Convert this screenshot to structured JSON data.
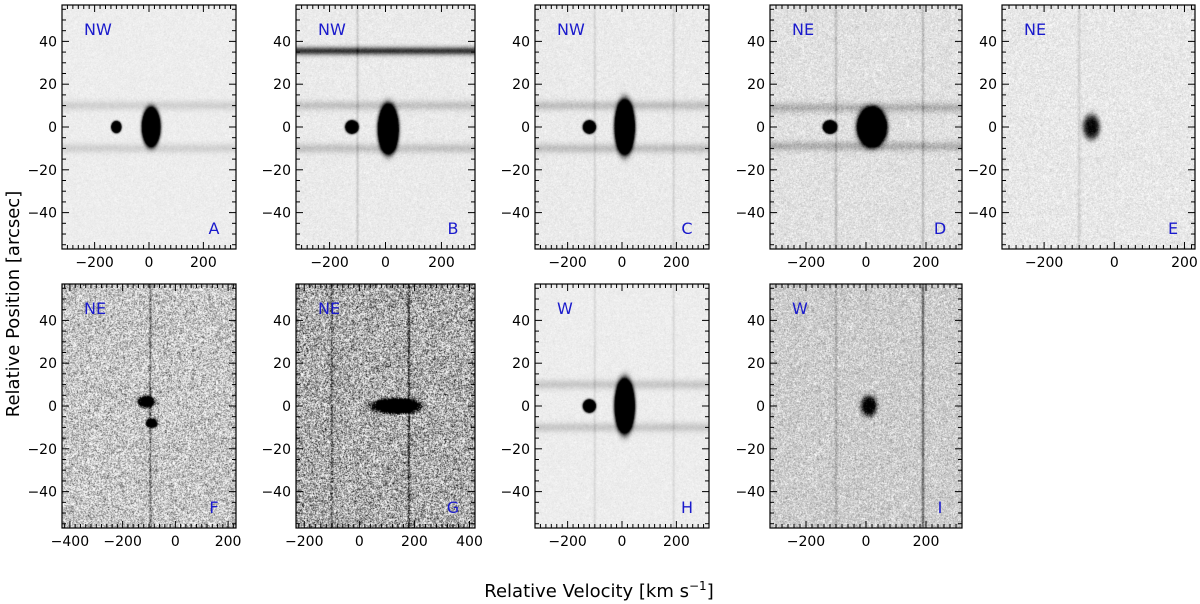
{
  "figure": {
    "xlabel": "Relative Velocity [km s",
    "xlabel_sup": "−1",
    "xlabel_end": "]",
    "ylabel": "Relative Position [arcsec]"
  },
  "chart_data": [
    {
      "type": "heatmap",
      "panel": "A",
      "direction": "NW",
      "xlim": [
        -320,
        320
      ],
      "ylim": [
        -57,
        57
      ],
      "xticks": [
        -200,
        0,
        200
      ],
      "yticks": [
        -40,
        -20,
        0,
        20,
        40
      ],
      "noise": 0.06,
      "bg": 0.07,
      "bands": [
        {
          "y": 10,
          "s": 0.9
        },
        {
          "y": -10,
          "s": 0.9
        }
      ],
      "streaks": [],
      "blobs": [
        {
          "x": 8,
          "y": 0,
          "w": 55,
          "h": 15,
          "s": 4
        },
        {
          "x": -120,
          "y": 0,
          "w": 30,
          "h": 4.5,
          "s": 4
        }
      ]
    },
    {
      "type": "heatmap",
      "panel": "B",
      "direction": "NW",
      "xlim": [
        -320,
        320
      ],
      "ylim": [
        -57,
        57
      ],
      "xticks": [
        -200,
        0,
        200
      ],
      "yticks": [
        -40,
        -20,
        0,
        20,
        40
      ],
      "noise": 0.08,
      "bg": 0.08,
      "bands": [
        {
          "y": 35.5,
          "s": 6,
          "hw": 1.3
        },
        {
          "y": 10,
          "s": 1.3
        },
        {
          "y": -10,
          "s": 1.3
        }
      ],
      "streaks": [
        {
          "x": -100,
          "s": 1.1
        }
      ],
      "blobs": [
        {
          "x": 10,
          "y": -1,
          "w": 60,
          "h": 19,
          "s": 4
        },
        {
          "x": -120,
          "y": 0,
          "w": 38,
          "h": 5,
          "s": 4
        }
      ]
    },
    {
      "type": "heatmap",
      "panel": "C",
      "direction": "NW",
      "xlim": [
        -320,
        320
      ],
      "ylim": [
        -57,
        57
      ],
      "xticks": [
        -200,
        0,
        200
      ],
      "yticks": [
        -40,
        -20,
        0,
        20,
        40
      ],
      "noise": 0.08,
      "bg": 0.08,
      "bands": [
        {
          "y": 10,
          "s": 1.4
        },
        {
          "y": -10,
          "s": 1.4
        }
      ],
      "streaks": [
        {
          "x": -100,
          "s": 0.8
        },
        {
          "x": 190,
          "s": 0.8
        }
      ],
      "blobs": [
        {
          "x": 10,
          "y": 0,
          "w": 60,
          "h": 21,
          "s": 4
        },
        {
          "x": -120,
          "y": 0,
          "w": 38,
          "h": 5,
          "s": 4
        }
      ]
    },
    {
      "type": "heatmap",
      "panel": "D",
      "direction": "NE",
      "xlim": [
        -320,
        320
      ],
      "ylim": [
        -57,
        57
      ],
      "xticks": [
        -200,
        0,
        200
      ],
      "yticks": [
        -40,
        -20,
        0,
        20,
        40
      ],
      "noise": 0.16,
      "bg": 0.12,
      "bands": [
        {
          "y": 9,
          "s": 1.6
        },
        {
          "y": -9,
          "s": 1.6
        }
      ],
      "streaks": [
        {
          "x": -100,
          "s": 1.3
        },
        {
          "x": 190,
          "s": 1.3
        }
      ],
      "blobs": [
        {
          "x": 20,
          "y": 0,
          "w": 80,
          "h": 15,
          "s": 4
        },
        {
          "x": -120,
          "y": 0,
          "w": 38,
          "h": 5,
          "s": 4
        }
      ]
    },
    {
      "type": "heatmap",
      "panel": "E",
      "direction": "NE",
      "xlim": [
        -320,
        230
      ],
      "ylim": [
        -57,
        57
      ],
      "xticks": [
        -200,
        0,
        200
      ],
      "yticks": [
        -40,
        -20,
        0,
        20,
        40
      ],
      "noise": 0.14,
      "bg": 0.09,
      "bands": [],
      "streaks": [
        {
          "x": -100,
          "s": 0.8
        }
      ],
      "blobs": [
        {
          "x": -65,
          "y": 0,
          "w": 45,
          "h": 11,
          "s": 0.9
        }
      ]
    },
    {
      "type": "heatmap",
      "panel": "F",
      "direction": "NE",
      "xlim": [
        -430,
        230
      ],
      "ylim": [
        -57,
        57
      ],
      "xticks": [
        -400,
        -200,
        0,
        200
      ],
      "yticks": [
        -40,
        -20,
        0,
        20,
        40
      ],
      "noise": 0.6,
      "bg": 0.22,
      "bands": [],
      "streaks": [
        {
          "x": -95,
          "s": 3
        }
      ],
      "blobs": [
        {
          "x": -110,
          "y": 2,
          "w": 55,
          "h": 5,
          "s": 1.5
        },
        {
          "x": -90,
          "y": -8,
          "w": 40,
          "h": 4,
          "s": 1.5
        }
      ]
    },
    {
      "type": "heatmap",
      "panel": "G",
      "direction": "NE",
      "xlim": [
        -230,
        420
      ],
      "ylim": [
        -57,
        57
      ],
      "xticks": [
        -200,
        0,
        200,
        400
      ],
      "yticks": [
        -40,
        -20,
        0,
        20,
        40
      ],
      "noise": 0.8,
      "bg": 0.32,
      "bands": [],
      "streaks": [
        {
          "x": -100,
          "s": 2.5
        },
        {
          "x": 180,
          "s": 4
        }
      ],
      "blobs": [
        {
          "x": 135,
          "y": 0,
          "w": 150,
          "h": 6,
          "s": 2.2
        }
      ]
    },
    {
      "type": "heatmap",
      "panel": "H",
      "direction": "W",
      "xlim": [
        -320,
        320
      ],
      "ylim": [
        -57,
        57
      ],
      "xticks": [
        -200,
        0,
        200
      ],
      "yticks": [
        -40,
        -20,
        0,
        20,
        40
      ],
      "noise": 0.06,
      "bg": 0.07,
      "bands": [
        {
          "y": 10,
          "s": 1.2
        },
        {
          "y": -10,
          "s": 1.2
        }
      ],
      "streaks": [
        {
          "x": -100,
          "s": 0.7
        },
        {
          "x": 190,
          "s": 0.7
        }
      ],
      "blobs": [
        {
          "x": 10,
          "y": 0,
          "w": 60,
          "h": 21,
          "s": 4
        },
        {
          "x": -120,
          "y": 0,
          "w": 38,
          "h": 5,
          "s": 4
        }
      ]
    },
    {
      "type": "heatmap",
      "panel": "I",
      "direction": "W",
      "xlim": [
        -320,
        320
      ],
      "ylim": [
        -57,
        57
      ],
      "xticks": [
        -200,
        0,
        200
      ],
      "yticks": [
        -40,
        -20,
        0,
        20,
        40
      ],
      "noise": 0.3,
      "bg": 0.2,
      "bands": [],
      "streaks": [
        {
          "x": -100,
          "s": 1.2
        },
        {
          "x": 190,
          "s": 3.5
        }
      ],
      "blobs": [
        {
          "x": 10,
          "y": 0,
          "w": 50,
          "h": 9,
          "s": 0.9
        }
      ]
    }
  ],
  "colors": {
    "text": "#000000",
    "panel_label": "#1a1acc",
    "direction_label": "#1a1acc"
  }
}
